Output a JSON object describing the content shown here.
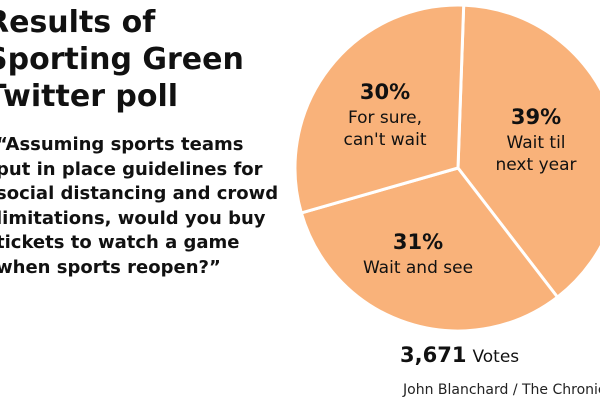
{
  "title_lines": [
    "Results of",
    "Sporting Green",
    "Twitter poll"
  ],
  "question_lines": [
    "“Assuming sports teams",
    "put in place guidelines for",
    "social distancing and crowd",
    "limitations, would you buy",
    "tickets to watch a game",
    "when sports reopen?”"
  ],
  "votes": {
    "count": "3,671",
    "label": "Votes"
  },
  "credit": "John Blanchard / The Chronicle",
  "colors": {
    "slice_fill": "#F9B27A",
    "slice_stroke": "#ffffff"
  },
  "chart_data": {
    "type": "pie",
    "slices": [
      {
        "value": 39,
        "pct_label": "39%",
        "label_lines": [
          "Wait til",
          "next year"
        ]
      },
      {
        "value": 31,
        "pct_label": "31%",
        "label_lines": [
          "Wait and see"
        ]
      },
      {
        "value": 30,
        "pct_label": "30%",
        "label_lines": [
          "For sure,",
          "can't wait"
        ]
      }
    ],
    "total_votes": 3671
  }
}
